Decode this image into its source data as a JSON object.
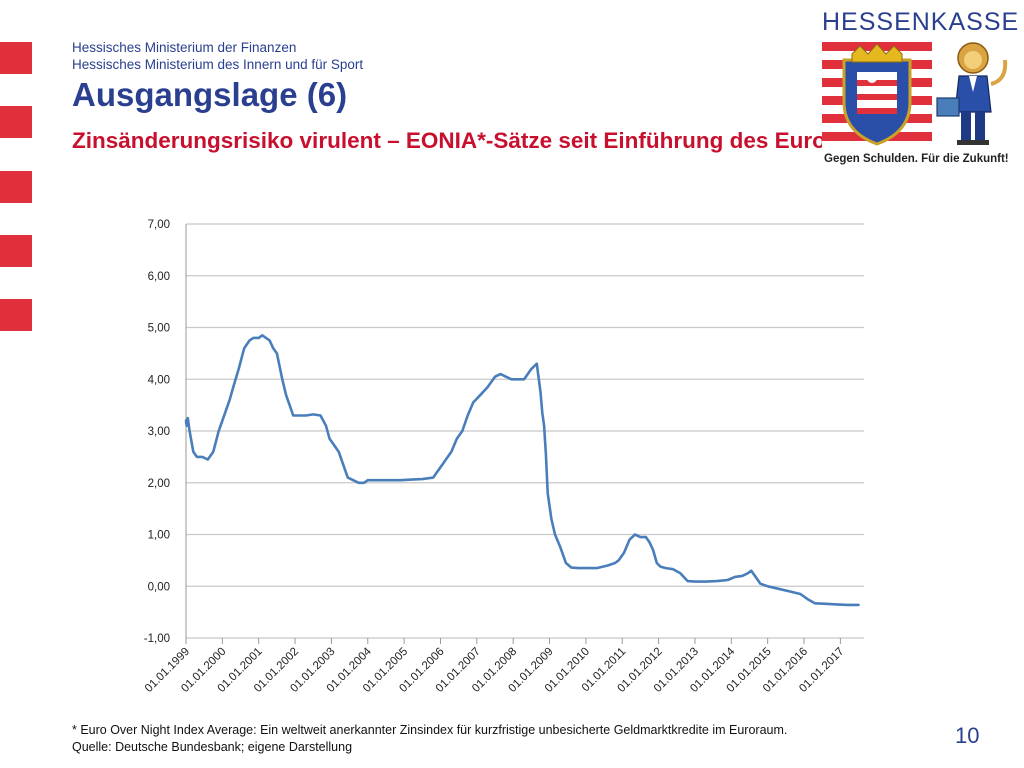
{
  "header": {
    "ministry_line1": "Hessisches Ministerium der Finanzen",
    "ministry_line2": "Hessisches Ministerium des Innern und für Sport",
    "title": "Ausgangslage (6)",
    "subtitle": "Zinsänderungsrisiko virulent – EONIA*-Sätze seit Einführung des Euro"
  },
  "logo": {
    "wordmark": "HESSENKASSE",
    "tagline": "Gegen Schulden. Für die Zukunft!",
    "icons": [
      "hessen-coat-of-arms-icon",
      "lion-mascot-icon"
    ]
  },
  "footer": {
    "footnote": "* Euro Over Night Index Average: Ein weltweit anerkannter Zinsindex für kurzfristige unbesicherte Geldmarktkredite im Euroraum.",
    "source": "Quelle: Deutsche Bundesbank; eigene Darstellung",
    "page_number": "10"
  },
  "colors": {
    "brand_blue": "#2a3f8f",
    "accent_red": "#c8102e",
    "side_blocks": "#e0303c",
    "line": "#4a7ebb",
    "grid": "#c8c8c8"
  },
  "chart_data": {
    "type": "line",
    "title": "",
    "xlabel": "",
    "ylabel": "",
    "ylim": [
      -1,
      7
    ],
    "y_ticks": [
      "-1,00",
      "0,00",
      "1,00",
      "2,00",
      "3,00",
      "4,00",
      "5,00",
      "6,00",
      "7,00"
    ],
    "x_ticks": [
      "01.01.1999",
      "01.01.2000",
      "01.01.2001",
      "01.01.2002",
      "01.01.2003",
      "01.01.2004",
      "01.01.2005",
      "01.01.2006",
      "01.01.2007",
      "01.01.2008",
      "01.01.2009",
      "01.01.2010",
      "01.01.2011",
      "01.01.2012",
      "01.01.2013",
      "01.01.2014",
      "01.01.2015",
      "01.01.2016",
      "01.01.2017"
    ],
    "grid": true,
    "legend": "none",
    "series": [
      {
        "x": [
          1999.0,
          1999.02,
          1999.05,
          1999.1,
          1999.2,
          1999.3,
          1999.45,
          1999.6,
          1999.75,
          1999.9,
          2000.0,
          2000.1,
          2000.2,
          2000.3,
          2000.45,
          2000.6,
          2000.75,
          2000.85,
          2001.0,
          2001.1,
          2001.2,
          2001.3,
          2001.4,
          2001.5,
          2001.65,
          2001.75,
          2001.85,
          2001.95,
          2002.1,
          2002.3,
          2002.5,
          2002.7,
          2002.85,
          2002.95,
          2003.05,
          2003.2,
          2003.35,
          2003.45,
          2003.6,
          2003.75,
          2003.9,
          2004.0,
          2004.3,
          2004.6,
          2004.9,
          2005.2,
          2005.5,
          2005.8,
          2005.9,
          2006.0,
          2006.15,
          2006.3,
          2006.45,
          2006.6,
          2006.75,
          2006.9,
          2007.1,
          2007.3,
          2007.5,
          2007.65,
          2007.8,
          2007.95,
          2008.1,
          2008.3,
          2008.5,
          2008.65,
          2008.75,
          2008.8,
          2008.85,
          2008.9,
          2008.95,
          2009.05,
          2009.15,
          2009.3,
          2009.45,
          2009.6,
          2009.8,
          2010.0,
          2010.3,
          2010.6,
          2010.8,
          2010.9,
          2011.05,
          2011.2,
          2011.35,
          2011.5,
          2011.65,
          2011.75,
          2011.85,
          2011.95,
          2012.05,
          2012.2,
          2012.4,
          2012.6,
          2012.8,
          2013.0,
          2013.3,
          2013.6,
          2013.9,
          2014.1,
          2014.3,
          2014.45,
          2014.55,
          2014.65,
          2014.8,
          2015.0,
          2015.3,
          2015.6,
          2015.9,
          2016.1,
          2016.3,
          2016.6,
          2016.9,
          2017.2,
          2017.5
        ],
        "y": [
          3.2,
          3.1,
          3.25,
          3.0,
          2.6,
          2.5,
          2.5,
          2.45,
          2.6,
          3.0,
          3.2,
          3.4,
          3.6,
          3.85,
          4.2,
          4.6,
          4.75,
          4.8,
          4.8,
          4.85,
          4.8,
          4.75,
          4.6,
          4.5,
          4.0,
          3.7,
          3.5,
          3.3,
          3.3,
          3.3,
          3.32,
          3.3,
          3.1,
          2.85,
          2.75,
          2.6,
          2.3,
          2.1,
          2.05,
          2.0,
          2.0,
          2.05,
          2.05,
          2.05,
          2.05,
          2.06,
          2.07,
          2.1,
          2.2,
          2.3,
          2.45,
          2.6,
          2.85,
          3.0,
          3.3,
          3.55,
          3.7,
          3.85,
          4.05,
          4.1,
          4.05,
          4.0,
          4.0,
          4.0,
          4.2,
          4.3,
          3.75,
          3.35,
          3.1,
          2.55,
          1.8,
          1.3,
          1.0,
          0.75,
          0.45,
          0.36,
          0.35,
          0.35,
          0.35,
          0.4,
          0.45,
          0.5,
          0.65,
          0.9,
          1.0,
          0.95,
          0.95,
          0.85,
          0.7,
          0.45,
          0.38,
          0.35,
          0.33,
          0.25,
          0.1,
          0.09,
          0.09,
          0.1,
          0.12,
          0.18,
          0.2,
          0.25,
          0.3,
          0.2,
          0.05,
          0.0,
          -0.05,
          -0.1,
          -0.15,
          -0.25,
          -0.33,
          -0.34,
          -0.35,
          -0.36,
          -0.36
        ]
      }
    ]
  }
}
